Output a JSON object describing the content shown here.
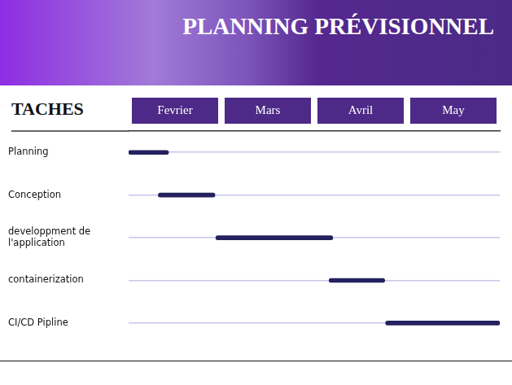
{
  "chart_data": {
    "type": "bar",
    "title": "PLANNING PRÉVISIONNEL",
    "ylabel": "TACHES",
    "orientation": "horizontal",
    "categories": [
      "Planning",
      "Conception",
      "developpment de l'application",
      "containerization",
      "CI/CD Pipline"
    ],
    "values": [
      [
        0,
        0.43
      ],
      [
        0.32,
        0.93
      ],
      [
        0.94,
        2.2
      ],
      [
        2.16,
        2.76
      ],
      [
        2.77,
        4
      ]
    ],
    "color": "#24215e",
    "xlim": [
      0,
      4
    ],
    "xticks": [
      {
        "value": 0.5,
        "label": "Fevrier"
      },
      {
        "value": 1.5,
        "label": "Mars"
      },
      {
        "value": 2.5,
        "label": "Avril"
      },
      {
        "value": 3.5,
        "label": "May"
      }
    ],
    "grid": true
  }
}
